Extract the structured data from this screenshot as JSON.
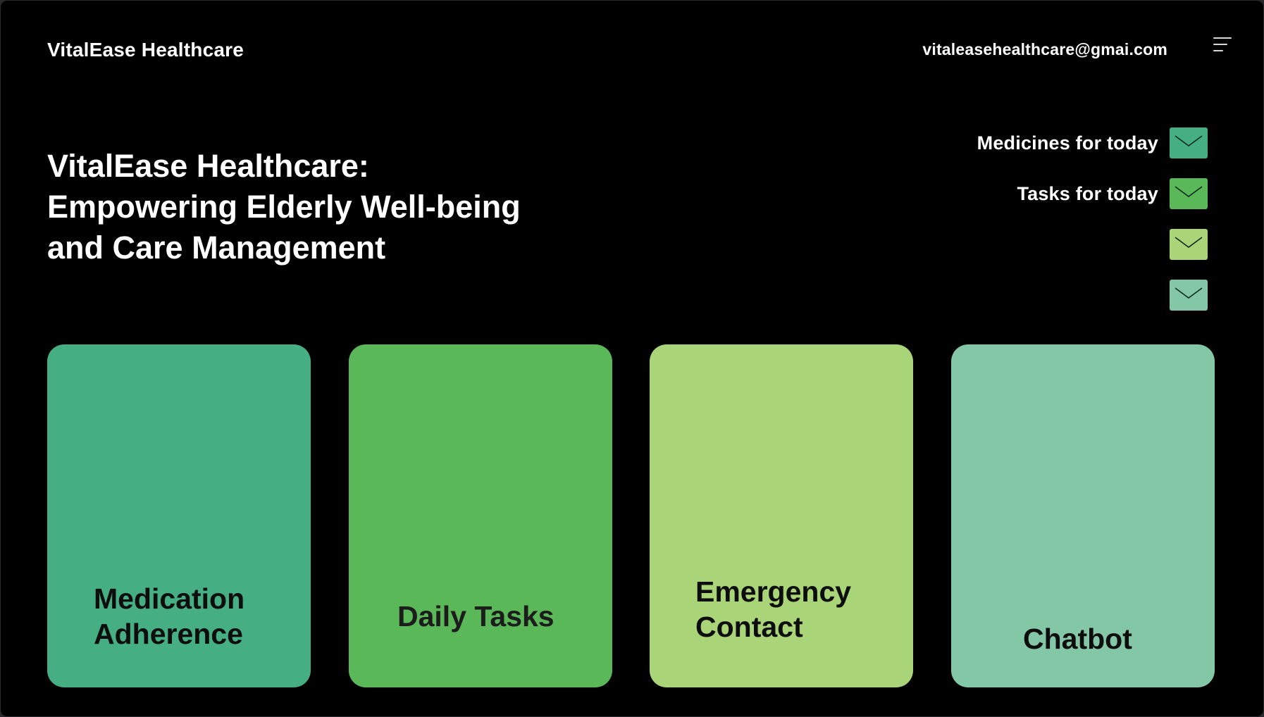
{
  "header": {
    "brand": "VitalEase Healthcare",
    "email": "vitaleasehealthcare@gmai.com",
    "menu_icon": "menu-lines-icon"
  },
  "hero": {
    "lines": [
      "VitalEase Healthcare:",
      "Empowering Elderly Well-being",
      "and Care Management"
    ]
  },
  "notifications": [
    {
      "label": "Medicines for today",
      "color": "#45ae83",
      "icon": "envelope-icon"
    },
    {
      "label": "Tasks for today",
      "color": "#5ab858",
      "icon": "envelope-icon"
    },
    {
      "label": "",
      "color": "#a9d477",
      "icon": "envelope-icon"
    },
    {
      "label": "",
      "color": "#83c7a6",
      "icon": "envelope-icon"
    }
  ],
  "cards": [
    {
      "lines": [
        "Medication",
        "Adherence"
      ],
      "color": "#45ae83"
    },
    {
      "lines": [
        "Daily Tasks"
      ],
      "color": "#5ab858"
    },
    {
      "lines": [
        "Emergency",
        "Contact"
      ],
      "color": "#a9d477"
    },
    {
      "lines": [
        "Chatbot"
      ],
      "color": "#83c7a6"
    }
  ]
}
